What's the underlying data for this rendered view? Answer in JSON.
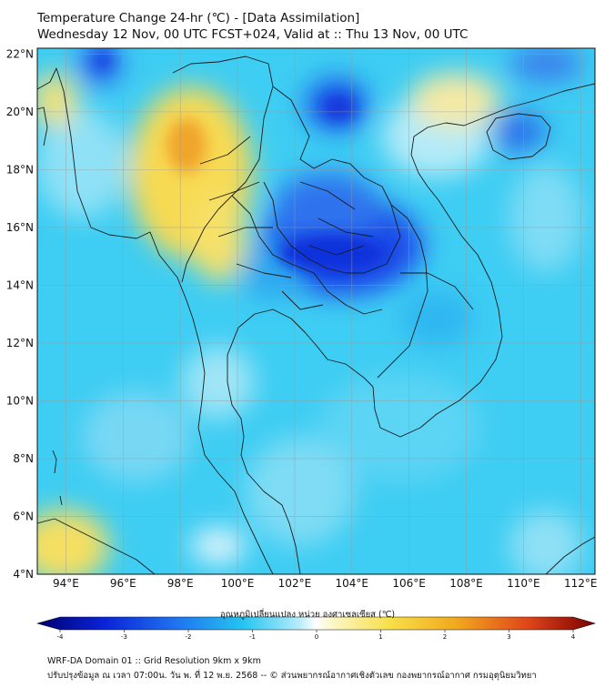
{
  "title": {
    "line1": "Temperature Change 24-hr (℃) - [Data Assimilation]",
    "line2": "Wednesday 12 Nov, 00 UTC FCST+024, Valid at :: Thu 13 Nov, 00 UTC"
  },
  "map": {
    "lat_labels": [
      "22°N",
      "20°N",
      "18°N",
      "16°N",
      "14°N",
      "12°N",
      "10°N",
      "8°N",
      "6°N",
      "4°N"
    ],
    "lon_labels": [
      "94°E",
      "96°E",
      "98°E",
      "100°E",
      "102°E",
      "104°E",
      "106°E",
      "108°E",
      "110°E",
      "112°E"
    ],
    "lat_values": [
      22,
      20,
      18,
      16,
      14,
      12,
      10,
      8,
      6,
      4
    ],
    "lon_values": [
      94,
      96,
      98,
      100,
      102,
      104,
      106,
      108,
      110,
      112
    ],
    "extent": {
      "lon_min": 93,
      "lon_max": 112.5,
      "lat_min": 4,
      "lat_max": 22.2
    }
  },
  "colorbar": {
    "label": "อุณหภูมิเปลี่ยนแปลง หน่วย องศาเซลเซียส (℃)",
    "ticks": [
      "-4",
      "-3",
      "-2",
      "-1",
      "0",
      "1",
      "2",
      "3",
      "4"
    ],
    "tick_values": [
      -4,
      -3,
      -2,
      -1,
      0,
      1,
      2,
      3,
      4
    ],
    "min": -4,
    "max": 4
  },
  "footer": {
    "line1": "WRF-DA Domain 01 :: Grid Resolution 9km x 9km",
    "line2": "ปรับปรุงข้อมูล ณ เวลา 07:00น. วัน พ. ที่ 12 พ.ย. 2568 -- © ส่วนพยากรณ์อากาศเชิงตัวเลข กองพยากรณ์อากาศ กรมอุตุนิยมวิทยา"
  },
  "colors": {
    "ocean_base": "#3ecdf3",
    "coast": "#1a1a1a",
    "grid": "#9a9a9a",
    "warm": "#f5d63a",
    "cold": "#1b3ce6"
  }
}
